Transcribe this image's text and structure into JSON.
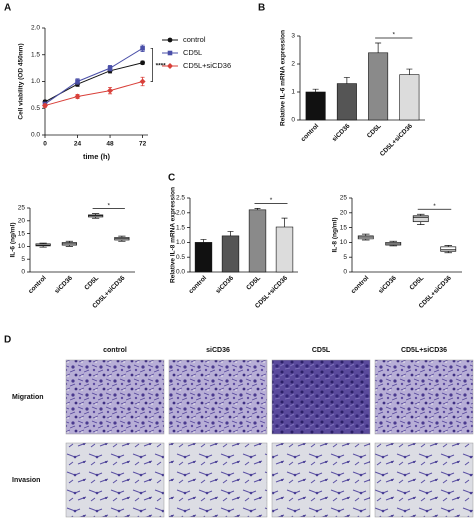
{
  "chart_data": [
    {
      "type": "line",
      "panel": "A",
      "xlabel": "time (h)",
      "ylabel": "Cell viability (OD 450nm)",
      "x": [
        0,
        24,
        48,
        72
      ],
      "xlim": [
        0,
        76
      ],
      "xticks": [
        0,
        24,
        48,
        72
      ],
      "ylim": [
        0,
        2
      ],
      "yticks": [
        {
          "value": 0,
          "label": "0.0"
        },
        {
          "value": 0.5,
          "label": "0.5"
        },
        {
          "value": 1,
          "label": "1.0"
        },
        {
          "value": 1.5,
          "label": "1.5"
        },
        {
          "value": 2,
          "label": "2.0"
        }
      ],
      "legend": "right",
      "significance": "****",
      "series": [
        {
          "name": "control",
          "color": "#111111",
          "marker": "circle",
          "values": [
            0.62,
            0.95,
            1.2,
            1.35
          ],
          "errors": [
            0.03,
            0.04,
            0.04,
            0.03
          ]
        },
        {
          "name": "CD5L",
          "color": "#4a4fa8",
          "marker": "square",
          "values": [
            0.58,
            1.0,
            1.25,
            1.62
          ],
          "errors": [
            0.03,
            0.05,
            0.05,
            0.06
          ]
        },
        {
          "name": "CD5L+siCD36",
          "color": "#d9403a",
          "marker": "diamond",
          "values": [
            0.55,
            0.72,
            0.83,
            1.0
          ],
          "errors": [
            0.03,
            0.04,
            0.06,
            0.08
          ]
        }
      ]
    },
    {
      "type": "bar",
      "panel": "B",
      "ylabel": "Relative IL-6 mRNA expression",
      "categories": [
        "control",
        "siCD36",
        "CD5L",
        "CD5L+siCD36"
      ],
      "values": [
        1.0,
        1.3,
        2.4,
        1.62
      ],
      "errors": [
        0.1,
        0.22,
        0.35,
        0.2
      ],
      "colors": [
        "#111111",
        "#555555",
        "#8a8a8a",
        "#dcdcdc"
      ],
      "ylim": [
        0,
        3
      ],
      "yticks": [
        0,
        1,
        2,
        3
      ],
      "significance": "*"
    },
    {
      "type": "box",
      "ylabel": "IL-6 (ng/ml)",
      "categories": [
        "control",
        "siCD36",
        "CD5L",
        "CD5L+siCD36"
      ],
      "boxes": [
        {
          "min": 9.7,
          "q1": 10.2,
          "median": 10.5,
          "q3": 11,
          "max": 11.3
        },
        {
          "min": 10,
          "q1": 10.5,
          "median": 11,
          "q3": 11.5,
          "max": 12
        },
        {
          "min": 21,
          "q1": 21.5,
          "median": 22,
          "q3": 22.3,
          "max": 22.8
        },
        {
          "min": 12,
          "q1": 12.5,
          "median": 13,
          "q3": 13.5,
          "max": 14
        }
      ],
      "colors": [
        "#ffffff",
        "#ffffff",
        "#d8d8d8",
        "#ffffff"
      ],
      "ylim": [
        0,
        25
      ],
      "yticks": [
        0,
        5,
        10,
        15,
        20,
        25
      ],
      "significance": "*"
    },
    {
      "type": "bar",
      "panel": "C",
      "ylabel": "Relative IL-8 mRNA expression",
      "categories": [
        "control",
        "siCD36",
        "CD5L",
        "CD5L+siCD36"
      ],
      "values": [
        1.0,
        1.22,
        2.1,
        1.52
      ],
      "errors": [
        0.1,
        0.15,
        0.05,
        0.3
      ],
      "colors": [
        "#111111",
        "#555555",
        "#8a8a8a",
        "#dcdcdc"
      ],
      "ylim": [
        0,
        2.5
      ],
      "yticks": [
        {
          "value": 0,
          "label": "0.0"
        },
        {
          "value": 0.5,
          "label": "0.5"
        },
        {
          "value": 1,
          "label": "1.0"
        },
        {
          "value": 1.5,
          "label": "1.5"
        },
        {
          "value": 2,
          "label": "2.0"
        },
        {
          "value": 2.5,
          "label": "2.5"
        }
      ],
      "significance": "*"
    },
    {
      "type": "box",
      "ylabel": "IL-8 (ng/ml)",
      "categories": [
        "control",
        "siCD36",
        "CD5L",
        "CD5L+siCD36"
      ],
      "boxes": [
        {
          "min": 10.8,
          "q1": 11.2,
          "median": 11.8,
          "q3": 12.2,
          "max": 12.8
        },
        {
          "min": 8.8,
          "q1": 9.1,
          "median": 9.5,
          "q3": 10,
          "max": 10.4
        },
        {
          "min": 16,
          "q1": 17,
          "median": 18.5,
          "q3": 19,
          "max": 19.5
        },
        {
          "min": 6.5,
          "q1": 7,
          "median": 7.5,
          "q3": 8.5,
          "max": 9
        }
      ],
      "colors": [
        "#ffffff",
        "#ffffff",
        "#d8d8d8",
        "#ffffff"
      ],
      "ylim": [
        0,
        25
      ],
      "yticks": [
        0,
        5,
        10,
        15,
        20,
        25
      ],
      "significance": "*"
    }
  ],
  "panel_d": {
    "label": "D",
    "columns": [
      "control",
      "siCD36",
      "CD5L",
      "CD5L+siCD36"
    ],
    "rows": [
      "Migration",
      "Invasion"
    ]
  }
}
